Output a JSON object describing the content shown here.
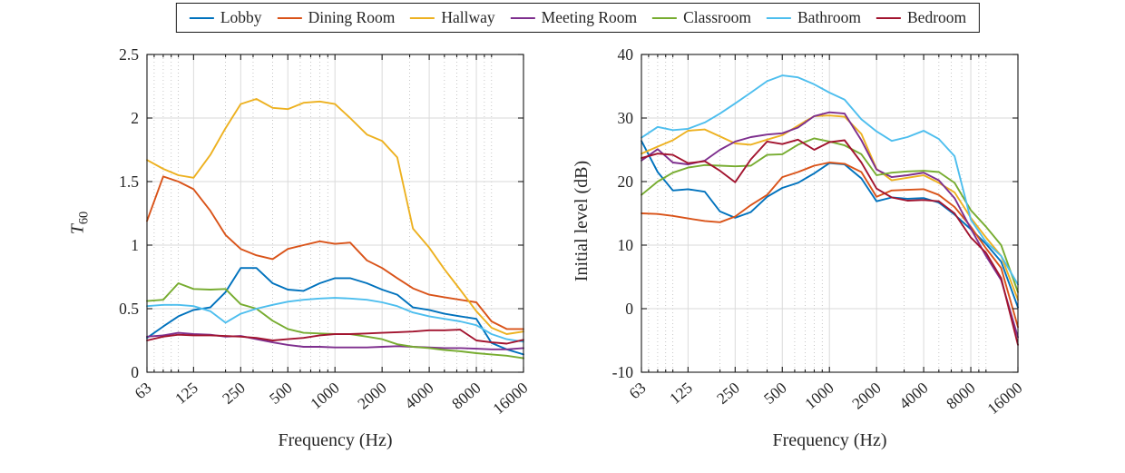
{
  "legend": {
    "entries": [
      {
        "label": "Lobby",
        "color": "#0072BD"
      },
      {
        "label": "Dining Room",
        "color": "#D95319"
      },
      {
        "label": "Hallway",
        "color": "#EDB120"
      },
      {
        "label": "Meeting Room",
        "color": "#7E2F8E"
      },
      {
        "label": "Classroom",
        "color": "#77AC30"
      },
      {
        "label": "Bathroom",
        "color": "#4DBEEE"
      },
      {
        "label": "Bedroom",
        "color": "#A2142F"
      }
    ]
  },
  "chart_data": [
    {
      "type": "line",
      "title": "",
      "xlabel": "Frequency (Hz)",
      "ylabel": {
        "base": "T",
        "sub": "60"
      },
      "xscale": "log",
      "xlim": [
        63,
        16000
      ],
      "xticks": [
        63,
        125,
        250,
        500,
        1000,
        2000,
        4000,
        8000,
        16000
      ],
      "ylim": [
        0,
        2.5
      ],
      "yticks": [
        0,
        0.5,
        1,
        1.5,
        2,
        2.5
      ],
      "grid": "major-and-minor-x",
      "legend_position": "top-outside",
      "x": [
        63,
        80,
        100,
        125,
        160,
        200,
        250,
        315,
        400,
        500,
        630,
        800,
        1000,
        1250,
        1600,
        2000,
        2500,
        3150,
        4000,
        5000,
        6300,
        8000,
        10000,
        12500,
        16000
      ],
      "series": [
        {
          "name": "Lobby",
          "color": "#0072BD",
          "values": [
            0.27,
            0.36,
            0.44,
            0.49,
            0.51,
            0.63,
            0.82,
            0.82,
            0.7,
            0.65,
            0.64,
            0.7,
            0.74,
            0.74,
            0.7,
            0.65,
            0.61,
            0.51,
            0.49,
            0.46,
            0.44,
            0.42,
            0.23,
            0.18,
            0.14
          ]
        },
        {
          "name": "Dining Room",
          "color": "#D95319",
          "values": [
            1.19,
            1.54,
            1.5,
            1.44,
            1.27,
            1.08,
            0.97,
            0.92,
            0.89,
            0.97,
            1.0,
            1.03,
            1.01,
            1.02,
            0.88,
            0.82,
            0.74,
            0.66,
            0.61,
            0.59,
            0.57,
            0.55,
            0.4,
            0.34,
            0.34
          ]
        },
        {
          "name": "Hallway",
          "color": "#EDB120",
          "values": [
            1.67,
            1.6,
            1.55,
            1.53,
            1.71,
            1.92,
            2.11,
            2.15,
            2.08,
            2.07,
            2.12,
            2.13,
            2.11,
            2.0,
            1.87,
            1.82,
            1.69,
            1.13,
            0.98,
            0.81,
            0.65,
            0.48,
            0.35,
            0.3,
            0.32
          ]
        },
        {
          "name": "Meeting Room",
          "color": "#7E2F8E",
          "values": [
            0.28,
            0.29,
            0.31,
            0.3,
            0.295,
            0.28,
            0.285,
            0.26,
            0.235,
            0.215,
            0.2,
            0.2,
            0.195,
            0.195,
            0.195,
            0.2,
            0.205,
            0.2,
            0.195,
            0.19,
            0.19,
            0.185,
            0.18,
            0.18,
            0.19
          ]
        },
        {
          "name": "Classroom",
          "color": "#77AC30",
          "values": [
            0.56,
            0.57,
            0.7,
            0.655,
            0.65,
            0.655,
            0.535,
            0.5,
            0.405,
            0.34,
            0.31,
            0.305,
            0.3,
            0.3,
            0.28,
            0.26,
            0.22,
            0.2,
            0.19,
            0.175,
            0.165,
            0.15,
            0.14,
            0.13,
            0.11
          ]
        },
        {
          "name": "Bathroom",
          "color": "#4DBEEE",
          "values": [
            0.52,
            0.53,
            0.53,
            0.52,
            0.48,
            0.39,
            0.46,
            0.5,
            0.53,
            0.555,
            0.57,
            0.58,
            0.585,
            0.58,
            0.57,
            0.55,
            0.52,
            0.47,
            0.44,
            0.42,
            0.4,
            0.37,
            0.3,
            0.26,
            0.24
          ]
        },
        {
          "name": "Bedroom",
          "color": "#A2142F",
          "values": [
            0.25,
            0.28,
            0.295,
            0.29,
            0.29,
            0.285,
            0.28,
            0.27,
            0.25,
            0.26,
            0.27,
            0.29,
            0.3,
            0.3,
            0.305,
            0.31,
            0.315,
            0.32,
            0.33,
            0.33,
            0.335,
            0.25,
            0.235,
            0.225,
            0.255
          ]
        }
      ]
    },
    {
      "type": "line",
      "title": "",
      "xlabel": "Frequency (Hz)",
      "ylabel": {
        "base": "Initial level (dB)",
        "sub": ""
      },
      "xscale": "log",
      "xlim": [
        63,
        16000
      ],
      "xticks": [
        63,
        125,
        250,
        500,
        1000,
        2000,
        4000,
        8000,
        16000
      ],
      "ylim": [
        -10,
        40
      ],
      "yticks": [
        -10,
        0,
        10,
        20,
        30,
        40
      ],
      "grid": "major-and-minor-x",
      "legend_position": "top-outside",
      "x": [
        63,
        80,
        100,
        125,
        160,
        200,
        250,
        315,
        400,
        500,
        630,
        800,
        1000,
        1250,
        1600,
        2000,
        2500,
        3150,
        4000,
        5000,
        6300,
        8000,
        10000,
        12500,
        16000
      ],
      "series": [
        {
          "name": "Lobby",
          "color": "#0072BD",
          "values": [
            26.4,
            21.5,
            18.6,
            18.8,
            18.4,
            15.3,
            14.3,
            15.2,
            17.6,
            19.0,
            19.8,
            21.3,
            22.9,
            22.7,
            20.5,
            16.9,
            17.5,
            17.3,
            17.4,
            16.7,
            14.8,
            12.5,
            10.2,
            7.4,
            0.2
          ]
        },
        {
          "name": "Dining Room",
          "color": "#D95319",
          "values": [
            15.0,
            14.9,
            14.6,
            14.2,
            13.8,
            13.6,
            14.5,
            16.3,
            17.9,
            20.7,
            21.5,
            22.5,
            23.0,
            22.8,
            21.5,
            17.6,
            18.6,
            18.7,
            18.8,
            17.9,
            16.0,
            12.9,
            9.5,
            6.4,
            -2.9
          ]
        },
        {
          "name": "Hallway",
          "color": "#EDB120",
          "values": [
            24.4,
            25.5,
            26.5,
            28.0,
            28.2,
            27.1,
            26.0,
            25.8,
            26.6,
            27.3,
            28.8,
            30.3,
            30.4,
            30.2,
            27.5,
            22.0,
            20.2,
            20.6,
            21.0,
            19.8,
            18.3,
            14.3,
            11.2,
            8.3,
            1.4
          ]
        },
        {
          "name": "Meeting Room",
          "color": "#7E2F8E",
          "values": [
            23.3,
            25.1,
            23.0,
            22.7,
            23.3,
            25.0,
            26.3,
            27.0,
            27.4,
            27.6,
            28.5,
            30.3,
            30.9,
            30.7,
            26.5,
            21.9,
            20.7,
            21.0,
            21.4,
            20.2,
            17.4,
            12.6,
            8.3,
            4.5,
            -4.5
          ]
        },
        {
          "name": "Classroom",
          "color": "#77AC30",
          "values": [
            17.9,
            20.0,
            21.4,
            22.2,
            22.6,
            22.5,
            22.4,
            22.5,
            24.2,
            24.3,
            25.8,
            26.8,
            26.3,
            25.7,
            24.3,
            21.0,
            21.4,
            21.6,
            21.7,
            21.5,
            19.8,
            15.5,
            12.9,
            10.0,
            2.6
          ]
        },
        {
          "name": "Bathroom",
          "color": "#4DBEEE",
          "values": [
            26.9,
            28.6,
            28.1,
            28.3,
            29.3,
            30.7,
            32.3,
            34.0,
            35.8,
            36.7,
            36.4,
            35.3,
            34.0,
            32.9,
            29.8,
            27.9,
            26.4,
            27.0,
            28.0,
            26.7,
            24.0,
            14.0,
            10.5,
            8.3,
            3.8
          ]
        },
        {
          "name": "Bedroom",
          "color": "#A2142F",
          "values": [
            23.7,
            24.4,
            24.2,
            22.9,
            23.2,
            21.7,
            19.9,
            23.5,
            26.3,
            25.9,
            26.6,
            25.0,
            26.2,
            26.5,
            23.0,
            18.9,
            17.5,
            17.0,
            17.1,
            16.9,
            15.0,
            11.2,
            8.8,
            4.8,
            -5.7
          ]
        }
      ]
    }
  ]
}
